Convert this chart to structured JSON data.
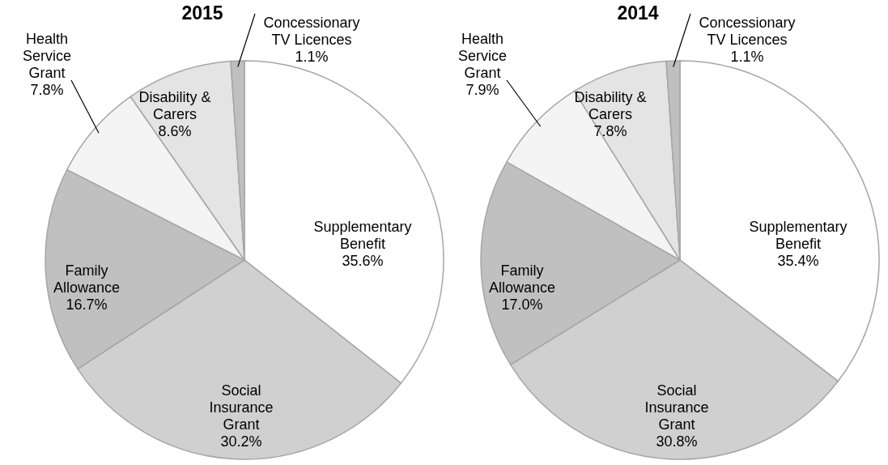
{
  "chart_data": [
    {
      "type": "pie",
      "title": "2015",
      "categories": [
        "Supplementary Benefit",
        "Social Insurance Grant",
        "Family Allowance",
        "Health Service Grant",
        "Disability & Carers",
        "Concessionary TV Licences"
      ],
      "values": [
        35.6,
        30.2,
        16.7,
        7.8,
        8.6,
        1.1
      ],
      "value_labels": [
        "35.6%",
        "30.2%",
        "16.7%",
        "7.8%",
        "8.6%",
        "1.1%"
      ],
      "colors": [
        "#ffffff",
        "#d0d0d0",
        "#c0c0c0",
        "#f4f4f4",
        "#e4e4e4",
        "#bfbfbf"
      ]
    },
    {
      "type": "pie",
      "title": "2014",
      "categories": [
        "Supplementary Benefit",
        "Social Insurance Grant",
        "Family Allowance",
        "Health Service Grant",
        "Disability & Carers",
        "Concessionary TV Licences"
      ],
      "values": [
        35.4,
        30.8,
        17.0,
        7.9,
        7.8,
        1.1
      ],
      "value_labels": [
        "35.4%",
        "30.8%",
        "17.0%",
        "7.9%",
        "7.8%",
        "1.1%"
      ],
      "colors": [
        "#ffffff",
        "#d0d0d0",
        "#c0c0c0",
        "#f4f4f4",
        "#e4e4e4",
        "#bfbfbf"
      ]
    }
  ]
}
